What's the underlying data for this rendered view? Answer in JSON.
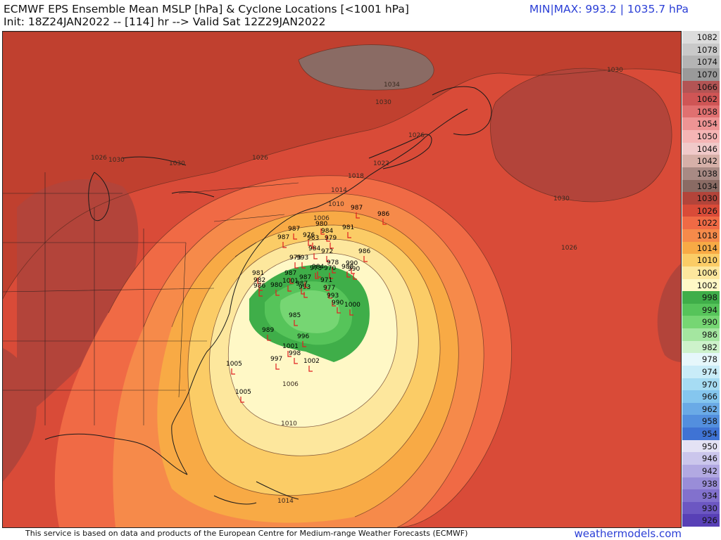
{
  "header": {
    "title_line1": "ECMWF EPS Ensemble Mean MSLP [hPa] & Cyclone Locations [<1001 hPa]",
    "title_line2": "Init: 18Z24JAN2022 -- [114] hr --> Valid Sat 12Z29JAN2022",
    "minmax": "MIN|MAX: 993.2 | 1035.7 hPa"
  },
  "footer": {
    "credit": "This service is based on data and products of the European Centre for Medium-range Weather Forecasts (ECMWF)",
    "brand": "weathermodels.com"
  },
  "colorbar": {
    "levels": [
      {
        "label": "1082",
        "color": "#dcdcdc"
      },
      {
        "label": "1078",
        "color": "#c9c9c9"
      },
      {
        "label": "1074",
        "color": "#b4b4b4"
      },
      {
        "label": "1070",
        "color": "#9a9a9a"
      },
      {
        "label": "1066",
        "color": "#b35454"
      },
      {
        "label": "1062",
        "color": "#cf5555"
      },
      {
        "label": "1058",
        "color": "#e07070"
      },
      {
        "label": "1054",
        "color": "#ee9494"
      },
      {
        "label": "1050",
        "color": "#f5b5b5"
      },
      {
        "label": "1046",
        "color": "#f0c9c9"
      },
      {
        "label": "1042",
        "color": "#d6b0a8"
      },
      {
        "label": "1038",
        "color": "#a88a84"
      },
      {
        "label": "1034",
        "color": "#8a6b64"
      },
      {
        "label": "1030",
        "color": "#b3443a"
      },
      {
        "label": "1026",
        "color": "#d94b38"
      },
      {
        "label": "1022",
        "color": "#f06a45"
      },
      {
        "label": "1018",
        "color": "#f68a4a"
      },
      {
        "label": "1014",
        "color": "#f8aa45"
      },
      {
        "label": "1010",
        "color": "#fbcc66"
      },
      {
        "label": "1006",
        "color": "#fde79d"
      },
      {
        "label": "1002",
        "color": "#fff8c6"
      },
      {
        "label": "998",
        "color": "#3fae49"
      },
      {
        "label": "994",
        "color": "#56c45a"
      },
      {
        "label": "990",
        "color": "#76d673"
      },
      {
        "label": "986",
        "color": "#a4e6a0"
      },
      {
        "label": "982",
        "color": "#cdf2cb"
      },
      {
        "label": "978",
        "color": "#e6f7fb"
      },
      {
        "label": "974",
        "color": "#c9ecf8"
      },
      {
        "label": "970",
        "color": "#a6dcf3"
      },
      {
        "label": "966",
        "color": "#85c6ee"
      },
      {
        "label": "962",
        "color": "#6aaae6"
      },
      {
        "label": "958",
        "color": "#538fde"
      },
      {
        "label": "954",
        "color": "#3f73d4"
      },
      {
        "label": "950",
        "color": "#e4e2f4"
      },
      {
        "label": "946",
        "color": "#cbc6ec"
      },
      {
        "label": "942",
        "color": "#b2a9e2"
      },
      {
        "label": "938",
        "color": "#998dd8"
      },
      {
        "label": "934",
        "color": "#8271cd"
      },
      {
        "label": "930",
        "color": "#6c57c2"
      },
      {
        "label": "926",
        "color": "#5840b6"
      }
    ]
  },
  "isobar_labels": [
    {
      "text": "1030",
      "id": "iso-1030-ne"
    },
    {
      "text": "1034",
      "id": "iso-1034-n"
    },
    {
      "text": "1030",
      "id": "iso-1030-n"
    },
    {
      "text": "1026",
      "id": "iso-1026-n"
    },
    {
      "text": "1026",
      "id": "iso-1026-ne"
    },
    {
      "text": "1030",
      "id": "iso-1030-e"
    },
    {
      "text": "1026",
      "id": "iso-1026-e"
    },
    {
      "text": "1022",
      "id": "iso-1022"
    },
    {
      "text": "1018",
      "id": "iso-1018"
    },
    {
      "text": "1014",
      "id": "iso-1014"
    },
    {
      "text": "1010",
      "id": "iso-1010"
    },
    {
      "text": "1006",
      "id": "iso-1006"
    },
    {
      "text": "1006",
      "id": "iso-1006-s"
    },
    {
      "text": "1010",
      "id": "iso-1010-s"
    },
    {
      "text": "1014",
      "id": "iso-1014-s"
    },
    {
      "text": "1026",
      "id": "iso-1026-w"
    },
    {
      "text": "1030",
      "id": "iso-1030-w"
    },
    {
      "text": "1030",
      "id": "iso-1030-w2"
    }
  ],
  "cyclone_labels": [
    "987",
    "986",
    "980",
    "984",
    "981",
    "987",
    "976",
    "987",
    "963",
    "979",
    "984",
    "972",
    "986",
    "990",
    "978",
    "988",
    "990",
    "975",
    "993",
    "970",
    "981",
    "982",
    "986",
    "1001",
    "980",
    "987",
    "993",
    "987",
    "971",
    "977",
    "993",
    "990",
    "1000",
    "985",
    "989",
    "996",
    "1001",
    "998",
    "997",
    "1002",
    "1005",
    "1005",
    "987",
    "973",
    "984"
  ]
}
